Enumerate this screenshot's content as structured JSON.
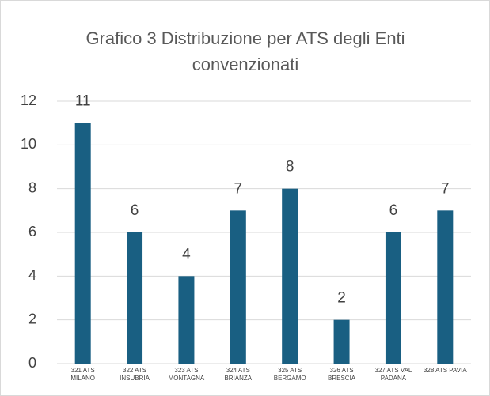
{
  "chart_data": {
    "type": "bar",
    "title": "Grafico 3 Distribuzione per ATS degli Enti convenzionati",
    "categories": [
      "321 ATS MILANO",
      "322 ATS INSUBRIA",
      "323 ATS MONTAGNA",
      "324 ATS BRIANZA",
      "325 ATS BERGAMO",
      "326 ATS BRESCIA",
      "327 ATS VAL PADANA",
      "328 ATS PAVIA"
    ],
    "values": [
      11,
      6,
      4,
      7,
      8,
      2,
      6,
      7
    ],
    "color": "#195f82",
    "ylim": [
      0,
      12
    ],
    "yticks": [
      0,
      2,
      4,
      6,
      8,
      10,
      12
    ],
    "grid": true
  }
}
